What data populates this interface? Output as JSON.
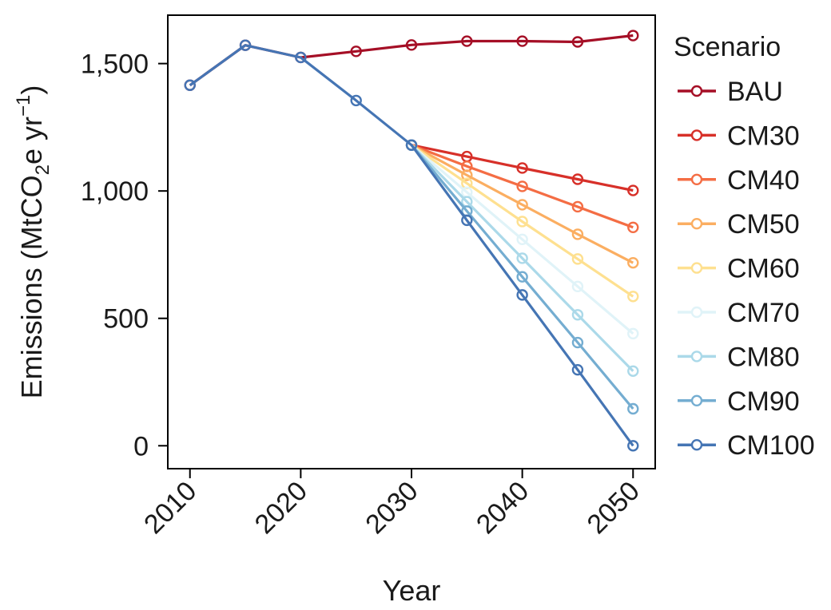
{
  "chart_data": {
    "type": "line",
    "xlabel": "Year",
    "ylabel": "Emissions (MtCO2e yr−1)",
    "ylabel_parts": {
      "main": "Emissions (MtCO",
      "sub": "2",
      "mid": "e yr",
      "sup": "−1",
      "end": ")"
    },
    "xlim": [
      2008,
      2052
    ],
    "ylim": [
      -90,
      1690
    ],
    "x_ticks": [
      2010,
      2020,
      2030,
      2040,
      2050
    ],
    "y_ticks": [
      0,
      500,
      1000,
      1500
    ],
    "y_tick_labels": [
      "0",
      "500",
      "1,000",
      "1,500"
    ],
    "legend_title": "Scenario",
    "legend_position": "right",
    "grid": false,
    "series": [
      {
        "name": "BAU",
        "color": "#a50f26",
        "x": [
          2010,
          2015,
          2020,
          2025,
          2030,
          2035,
          2040,
          2045,
          2050
        ],
        "values": [
          1415,
          1572,
          1524,
          1548,
          1573,
          1588,
          1588,
          1585,
          1610
        ]
      },
      {
        "name": "CM30",
        "color": "#d73029",
        "x": [
          2030,
          2035,
          2040,
          2045,
          2050
        ],
        "values": [
          1180,
          1135,
          1090,
          1046,
          1002
        ]
      },
      {
        "name": "CM40",
        "color": "#f46d44",
        "x": [
          2030,
          2035,
          2040,
          2045,
          2050
        ],
        "values": [
          1180,
          1097,
          1018,
          938,
          857
        ]
      },
      {
        "name": "CM50",
        "color": "#fbae61",
        "x": [
          2030,
          2035,
          2040,
          2045,
          2050
        ],
        "values": [
          1180,
          1062,
          946,
          830,
          718
        ]
      },
      {
        "name": "CM60",
        "color": "#fee090",
        "x": [
          2030,
          2035,
          2040,
          2045,
          2050
        ],
        "values": [
          1180,
          1030,
          880,
          733,
          586
        ]
      },
      {
        "name": "CM70",
        "color": "#e0f3f8",
        "x": [
          2030,
          2035,
          2040,
          2045,
          2050
        ],
        "values": [
          1180,
          995,
          810,
          625,
          440
        ]
      },
      {
        "name": "CM80",
        "color": "#abd9e9",
        "x": [
          2030,
          2035,
          2040,
          2045,
          2050
        ],
        "values": [
          1180,
          958,
          736,
          514,
          293
        ]
      },
      {
        "name": "CM90",
        "color": "#74add1",
        "x": [
          2030,
          2035,
          2040,
          2045,
          2050
        ],
        "values": [
          1180,
          921,
          663,
          405,
          145
        ]
      },
      {
        "name": "CM100",
        "color": "#4575b4",
        "x": [
          2010,
          2015,
          2020,
          2025,
          2030,
          2035,
          2040,
          2045,
          2050
        ],
        "values": [
          1415,
          1572,
          1524,
          1355,
          1180,
          885,
          592,
          298,
          0
        ]
      }
    ]
  }
}
